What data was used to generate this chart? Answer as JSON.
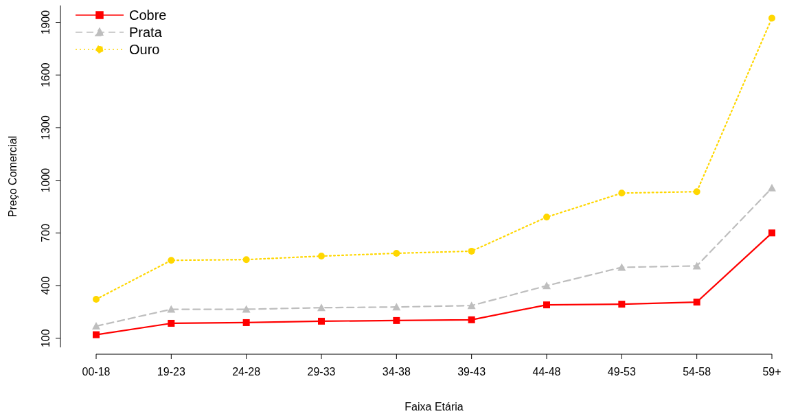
{
  "chart_data": {
    "type": "line",
    "xlabel": "Faixa Etária",
    "ylabel": "Preço Comercial",
    "categories": [
      "00-18",
      "19-23",
      "24-28",
      "29-33",
      "34-38",
      "39-43",
      "44-48",
      "49-53",
      "54-58",
      "59+"
    ],
    "series": [
      {
        "name": "Cobre",
        "color": "#ff0000",
        "marker": "square",
        "line_style": "solid",
        "values": [
          120,
          185,
          189,
          197,
          201,
          205,
          290,
          294,
          306,
          700
        ]
      },
      {
        "name": "Prata",
        "color": "#bebebe",
        "marker": "triangle",
        "line_style": "dashed",
        "values": [
          169,
          265,
          265,
          274,
          278,
          286,
          399,
          504,
          512,
          956
        ]
      },
      {
        "name": "Ouro",
        "color": "#ffd700",
        "marker": "circle",
        "line_style": "dotted",
        "values": [
          322,
          544,
          548,
          568,
          584,
          596,
          790,
          927,
          935,
          1924
        ]
      }
    ],
    "ylim": [
      48,
      1996
    ],
    "yticks": [
      100,
      400,
      700,
      1000,
      1300,
      1600,
      1900
    ],
    "grid": false,
    "legend": "top left"
  }
}
